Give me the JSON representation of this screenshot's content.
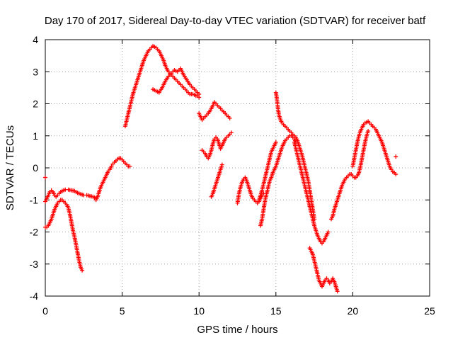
{
  "chart_data": {
    "type": "scatter",
    "title": "Day 170 of 2017, Sidereal Day-to-day VTEC variation (SDTVAR) for receiver batf",
    "xlabel": "GPS time / hours",
    "ylabel": "SDTVAR / TECUs",
    "xlim": [
      0,
      25
    ],
    "ylim": [
      -4,
      4
    ],
    "xticks": [
      0,
      5,
      10,
      15,
      20,
      25
    ],
    "yticks": [
      -4,
      -3,
      -2,
      -1,
      0,
      1,
      2,
      3,
      4
    ],
    "grid": true,
    "marker": "plus",
    "color": "#ff0000",
    "series": [
      {
        "x": [
          0.0,
          0.05,
          0.1,
          0.15,
          0.2,
          0.3,
          0.4,
          0.5,
          0.6,
          0.7,
          0.8,
          0.9,
          1.0,
          1.1,
          1.2,
          1.3,
          1.5,
          1.7,
          1.9,
          2.1,
          2.3,
          2.5,
          2.7,
          2.9,
          3.1,
          3.3
        ],
        "values": [
          -1.05,
          -1.0,
          -0.95,
          -0.9,
          -0.85,
          -0.75,
          -0.7,
          -0.75,
          -0.85,
          -0.9,
          -0.85,
          -0.8,
          -0.75,
          -0.72,
          -0.7,
          -0.68,
          -0.68,
          -0.7,
          -0.72,
          -0.78,
          -0.82,
          -0.85,
          -0.85,
          -0.88,
          -0.9,
          -0.95
        ]
      },
      {
        "x": [
          0.0,
          0.1,
          0.2,
          0.3,
          0.4,
          0.5,
          0.6,
          0.7,
          0.8,
          0.9,
          1.0,
          1.1,
          1.2,
          1.3,
          1.4,
          1.5,
          1.6,
          1.7,
          1.8,
          1.9,
          2.0,
          2.1,
          2.2,
          2.3,
          2.4
        ],
        "values": [
          -1.85,
          -1.85,
          -1.8,
          -1.7,
          -1.6,
          -1.45,
          -1.3,
          -1.2,
          -1.1,
          -1.05,
          -1.0,
          -1.0,
          -1.05,
          -1.1,
          -1.15,
          -1.25,
          -1.45,
          -1.7,
          -1.95,
          -2.15,
          -2.4,
          -2.65,
          -2.9,
          -3.1,
          -3.2
        ]
      },
      {
        "x": [
          3.3,
          3.4,
          3.5,
          3.6,
          3.7,
          3.8,
          3.9,
          4.0,
          4.1,
          4.2,
          4.3,
          4.4,
          4.5,
          4.6,
          4.7,
          4.8,
          4.9,
          5.0,
          5.1,
          5.2,
          5.3,
          5.4,
          5.5
        ],
        "values": [
          -1.0,
          -0.9,
          -0.75,
          -0.6,
          -0.5,
          -0.4,
          -0.3,
          -0.2,
          -0.1,
          -0.05,
          0.05,
          0.12,
          0.18,
          0.22,
          0.27,
          0.3,
          0.3,
          0.25,
          0.2,
          0.15,
          0.1,
          0.05,
          0.05
        ]
      },
      {
        "x": [
          5.2,
          5.3,
          5.4,
          5.5,
          5.6,
          5.7,
          5.8,
          5.9,
          6.0,
          6.1,
          6.2,
          6.3,
          6.4,
          6.5,
          6.6,
          6.7,
          6.8,
          6.9,
          7.0,
          7.1,
          7.2,
          7.3,
          7.4,
          7.5,
          7.6,
          7.7,
          7.8,
          7.9,
          8.0,
          8.1,
          8.2,
          8.3,
          8.4,
          8.5,
          8.6,
          8.7,
          8.8,
          8.9,
          9.0,
          9.1,
          9.2,
          9.3,
          9.4,
          9.5,
          9.6,
          9.7,
          9.8,
          9.9,
          10.0
        ],
        "values": [
          1.3,
          1.5,
          1.7,
          1.9,
          2.1,
          2.3,
          2.45,
          2.6,
          2.75,
          2.9,
          3.05,
          3.2,
          3.35,
          3.45,
          3.55,
          3.65,
          3.7,
          3.75,
          3.8,
          3.78,
          3.75,
          3.7,
          3.65,
          3.55,
          3.45,
          3.35,
          3.2,
          3.1,
          3.0,
          2.95,
          2.9,
          2.85,
          2.8,
          2.75,
          2.7,
          2.65,
          2.6,
          2.55,
          2.5,
          2.45,
          2.4,
          2.35,
          2.3,
          2.3,
          2.3,
          2.28,
          2.25,
          2.25,
          2.2
        ]
      },
      {
        "x": [
          7.0,
          7.2,
          7.4,
          7.6,
          7.8,
          8.0,
          8.2,
          8.4,
          8.6,
          8.8,
          9.0,
          9.2,
          9.4,
          9.6,
          9.8,
          10.0
        ],
        "values": [
          2.45,
          2.4,
          2.35,
          2.5,
          2.7,
          2.85,
          2.95,
          3.05,
          3.0,
          3.1,
          2.9,
          2.75,
          2.6,
          2.5,
          2.4,
          2.3
        ]
      },
      {
        "x": [
          10.0,
          10.2,
          10.4,
          10.6,
          10.8,
          11.0,
          11.2,
          11.4,
          11.6,
          11.8,
          12.0
        ],
        "values": [
          1.7,
          1.5,
          1.6,
          1.7,
          1.85,
          2.05,
          1.95,
          1.85,
          1.75,
          1.65,
          1.55
        ]
      },
      {
        "x": [
          10.2,
          10.3,
          10.4,
          10.5,
          10.6,
          10.7,
          10.8,
          10.9,
          11.0,
          11.1,
          11.2,
          11.3,
          11.4,
          11.5,
          11.6,
          11.7,
          11.8,
          11.9,
          12.0,
          12.1
        ],
        "values": [
          0.55,
          0.5,
          0.45,
          0.35,
          0.3,
          0.4,
          0.55,
          0.75,
          0.9,
          0.95,
          0.9,
          0.75,
          0.6,
          0.7,
          0.8,
          0.9,
          0.95,
          1.0,
          1.05,
          1.1
        ]
      },
      {
        "x": [
          10.8,
          10.9,
          11.0,
          11.1,
          11.2,
          11.3,
          11.4,
          11.5
        ],
        "values": [
          -0.9,
          -0.8,
          -0.65,
          -0.5,
          -0.35,
          -0.2,
          -0.05,
          0.1
        ]
      },
      {
        "x": [
          12.5,
          12.6,
          12.7,
          12.8,
          12.9,
          13.0,
          13.1,
          13.2,
          13.3,
          13.4,
          13.5,
          13.6,
          13.7,
          13.8,
          13.9,
          14.0,
          14.1,
          14.2
        ],
        "values": [
          -1.1,
          -0.8,
          -0.6,
          -0.45,
          -0.35,
          -0.3,
          -0.4,
          -0.55,
          -0.7,
          -0.85,
          -0.95,
          -1.0,
          -1.05,
          -1.1,
          -1.05,
          -0.95,
          -0.85,
          -0.8
        ]
      },
      {
        "x": [
          14.0,
          14.1,
          14.2,
          14.3,
          14.4,
          14.5,
          14.6,
          14.7,
          14.8,
          14.9,
          15.0,
          15.1,
          15.2,
          15.3,
          15.4,
          15.5,
          15.6,
          15.7,
          15.8,
          15.9,
          16.0,
          16.1,
          16.2,
          16.3
        ],
        "values": [
          -1.8,
          -1.6,
          -1.3,
          -1.0,
          -0.8,
          -0.6,
          -0.4,
          -0.3,
          -0.15,
          -0.05,
          0.05,
          0.2,
          0.35,
          0.5,
          0.65,
          0.75,
          0.85,
          0.9,
          0.95,
          1.0,
          1.0,
          0.95,
          0.9,
          0.8
        ]
      },
      {
        "x": [
          13.9,
          14.0,
          14.1,
          14.2,
          14.3,
          14.4,
          14.5,
          14.6,
          14.7,
          14.8,
          14.9,
          15.0
        ],
        "values": [
          -1.0,
          -0.85,
          -0.7,
          -0.5,
          -0.3,
          -0.1,
          0.1,
          0.3,
          0.5,
          0.6,
          0.7,
          0.8
        ]
      },
      {
        "x": [
          15.0,
          15.05,
          15.1,
          15.15,
          15.2,
          15.3,
          15.4,
          15.5,
          15.6,
          15.7,
          15.8,
          15.9,
          16.0,
          16.1,
          16.2,
          16.3,
          16.4,
          16.5,
          16.6,
          16.7,
          16.8,
          16.9,
          17.0,
          17.1,
          17.2,
          17.3,
          17.4,
          17.5
        ],
        "values": [
          2.35,
          2.2,
          2.0,
          1.8,
          1.65,
          1.5,
          1.4,
          1.35,
          1.3,
          1.25,
          1.2,
          1.15,
          1.1,
          1.05,
          1.0,
          0.95,
          0.85,
          0.7,
          0.55,
          0.4,
          0.2,
          0.0,
          -0.2,
          -0.4,
          -0.7,
          -1.0,
          -1.3,
          -1.6
        ]
      },
      {
        "x": [
          16.2,
          16.3,
          16.4,
          16.5,
          16.6,
          16.7,
          16.8,
          16.9,
          17.0,
          17.1,
          17.2,
          17.3,
          17.4,
          17.5,
          17.6,
          17.7,
          17.8,
          17.9,
          18.0,
          18.1,
          18.2,
          18.3,
          18.4
        ],
        "values": [
          0.8,
          0.6,
          0.4,
          0.2,
          0.0,
          -0.2,
          -0.4,
          -0.6,
          -0.8,
          -1.0,
          -1.2,
          -1.4,
          -1.6,
          -1.8,
          -1.95,
          -2.1,
          -2.2,
          -2.3,
          -2.35,
          -2.3,
          -2.2,
          -2.1,
          -2.0
        ]
      },
      {
        "x": [
          17.2,
          17.3,
          17.4,
          17.5,
          17.6,
          17.7,
          17.8,
          17.9,
          18.0,
          18.1,
          18.2,
          18.3,
          18.4,
          18.5,
          18.6,
          18.7,
          18.8,
          18.9,
          19.0
        ],
        "values": [
          -2.5,
          -2.6,
          -2.7,
          -2.9,
          -3.1,
          -3.3,
          -3.5,
          -3.6,
          -3.7,
          -3.6,
          -3.5,
          -3.45,
          -3.5,
          -3.6,
          -3.55,
          -3.45,
          -3.55,
          -3.7,
          -3.85
        ]
      },
      {
        "x": [
          18.6,
          18.7,
          18.8,
          18.9,
          19.0,
          19.1,
          19.2,
          19.3,
          19.4,
          19.5,
          19.6,
          19.7,
          19.8,
          19.9,
          20.0,
          20.1,
          20.2,
          20.3,
          20.4,
          20.5,
          20.6,
          20.7,
          20.8,
          20.9,
          21.0
        ],
        "values": [
          -1.6,
          -1.5,
          -1.3,
          -1.15,
          -1.0,
          -0.85,
          -0.7,
          -0.55,
          -0.45,
          -0.35,
          -0.3,
          -0.25,
          -0.2,
          -0.2,
          -0.25,
          -0.3,
          -0.3,
          -0.25,
          -0.15,
          0.05,
          0.3,
          0.55,
          0.8,
          1.0,
          1.15
        ]
      },
      {
        "x": [
          20.0,
          20.1,
          20.2,
          20.3,
          20.4,
          20.5,
          20.6,
          20.7,
          20.8,
          20.9,
          21.0,
          21.1,
          21.2,
          21.3,
          21.4,
          21.5,
          21.6,
          21.7,
          21.8,
          21.9,
          22.0,
          22.1,
          22.2,
          22.3,
          22.4,
          22.5,
          22.6,
          22.7,
          22.8
        ],
        "values": [
          0.05,
          0.3,
          0.55,
          0.8,
          1.0,
          1.15,
          1.25,
          1.35,
          1.4,
          1.42,
          1.45,
          1.4,
          1.35,
          1.3,
          1.25,
          1.2,
          1.1,
          1.0,
          0.9,
          0.8,
          0.65,
          0.5,
          0.35,
          0.2,
          0.05,
          -0.05,
          -0.12,
          -0.15,
          -0.2
        ]
      },
      {
        "x": [
          22.8
        ],
        "values": [
          0.35
        ]
      },
      {
        "x": [
          0.0
        ],
        "values": [
          -0.3
        ]
      }
    ]
  }
}
